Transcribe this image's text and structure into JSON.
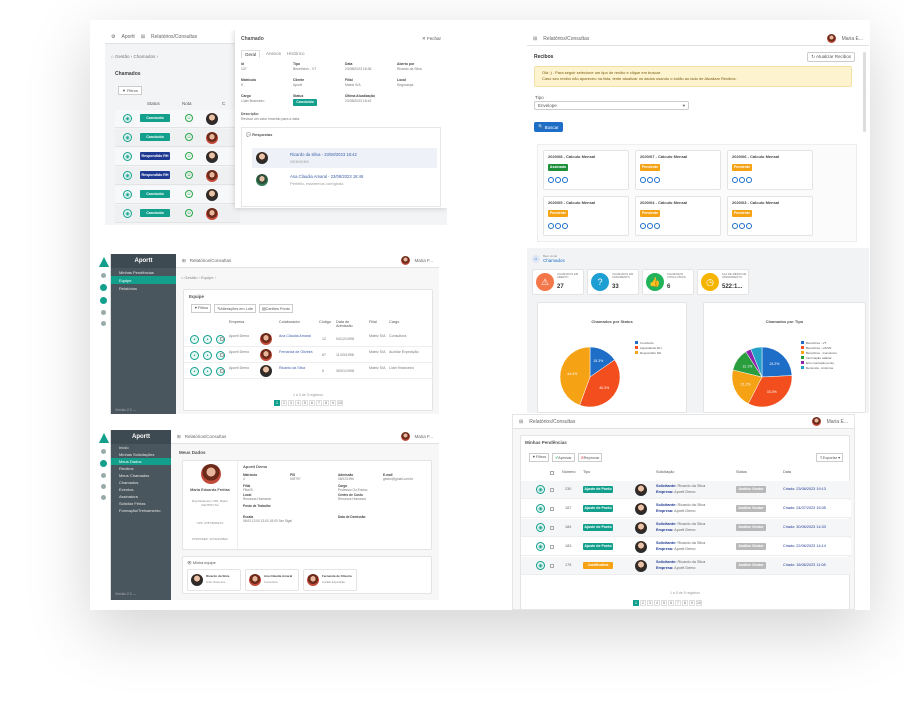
{
  "colors": {
    "accent": "#12a08c",
    "navy": "#1f3a93",
    "orange": "#f5a214",
    "blue": "#1e6ec8",
    "red": "#f24e1e",
    "sidebar": "#4a565d"
  },
  "s1": {
    "breadcrumb1": "Aportt",
    "breadcrumb2": "Relatórios/Consultas",
    "crumbs": "⌂ Gestão  ›  Chamados  ›",
    "section": "Chamados",
    "filter": "Filtros",
    "col_status": "Status",
    "col_nota": "Nota",
    "col_c": "C",
    "rows": [
      "Concluído",
      "Concluído",
      "Respondido RH",
      "Respondido RH",
      "Concluído",
      "Concluído"
    ],
    "modal": {
      "title": "Chamado",
      "close": "✕ Fechar",
      "tabs": [
        "Geral",
        "Anexos",
        "Histórico"
      ],
      "fields": [
        {
          "k": "Id",
          "v": "137"
        },
        {
          "k": "Tipo",
          "v": "Benefícios - VT"
        },
        {
          "k": "Data",
          "v": "23/08/2023 18:36"
        },
        {
          "k": "Aberto por",
          "v": "Ricardo da Silva"
        },
        {
          "k": "Matrícula",
          "v": "5"
        },
        {
          "k": "Cliente",
          "v": "Aportt"
        },
        {
          "k": "Filial",
          "v": "Matriz S/A"
        },
        {
          "k": "Local",
          "v": "Segurança"
        },
        {
          "k": "Cargo",
          "v": "Líder financeiro"
        },
        {
          "k": "Status",
          "v": "Concluído"
        },
        {
          "k": "Última Atualização",
          "v": "23/08/2023 18:42"
        }
      ],
      "desc_label": "Descrição:",
      "desc": "Revisar um valor inserido para a data.",
      "responses_title": "Respostas",
      "responses": [
        {
          "name": "Ricardo da Silva - 23/08/2023 18:42",
          "text": "OKKKKKK"
        },
        {
          "name": "Ana Cláudia Amaral - 23/08/2023 18:46",
          "text": "Perfeito, estaremos corrigindo."
        }
      ]
    }
  },
  "s2": {
    "breadcrumb": "Relatórios/Consultas",
    "user": "Maria E...",
    "section": "Recibos",
    "refresh": "Atualizar Recibos",
    "alert1": "Olá :) . Para seguir selecione um tipo de recibo e clique em buscar.",
    "alert2": "Caso seu recibo não apareceu na lista, tente atualizar os dados usando o botão ao lado de Atualizar Recibos.",
    "type_label": "Tipo",
    "type_value": "Envelope",
    "search": "Buscar",
    "receipts": [
      {
        "title": "2020/08 - Cálculo Mensal",
        "status": "Assinado"
      },
      {
        "title": "2020/07 - Cálculo Mensal",
        "status": "Pendente"
      },
      {
        "title": "2020/06 - Cálculo Mensal",
        "status": "Pendente"
      },
      {
        "title": "2020/05 - Cálculo Mensal",
        "status": "Pendente"
      },
      {
        "title": "2020/04 - Cálculo Mensal",
        "status": "Pendente"
      },
      {
        "title": "2020/03 - Cálculo Mensal",
        "status": "Pendente"
      }
    ]
  },
  "s3": {
    "app": "Aportt",
    "breadcrumb": "Relatórios/Consultas",
    "user": "Maria F...",
    "menu": [
      "Minhas Pendências",
      "Equipe",
      "Relatórios"
    ],
    "crumbs": "⌂ Gestão  ›  Equipe  ›",
    "section": "Equipe",
    "filter": "Filtros",
    "change": "Alterações em Lote",
    "cards": "Cartões Ponto",
    "headers": [
      "Empresa",
      "Colaborador",
      "Código",
      "Data de Admissão",
      "Filial",
      "Cargo"
    ],
    "rows": [
      {
        "empresa": "Aportt Demo",
        "nome": "Ana Cláudia Amaral",
        "codigo": "12",
        "data": "04/12/1998",
        "filial": "Matriz S/A",
        "cargo": "Consultora"
      },
      {
        "empresa": "Aportt Demo",
        "nome": "Fernanda de Oliveira",
        "codigo": "67",
        "data": "11/03/1998",
        "filial": "Matriz S/A",
        "cargo": "Auxiliar Expedição"
      },
      {
        "empresa": "Aportt Demo",
        "nome": "Ricardo da Silva",
        "codigo": "5",
        "data": "30/01/1998",
        "filial": "Matriz S/A",
        "cargo": "Líder financeiro"
      }
    ],
    "pager_info": "1 a 3 de 3 registros",
    "pages": [
      "1",
      "2",
      "3",
      "4",
      "5",
      "6",
      "7",
      "8",
      "9",
      "10"
    ],
    "version": "Versão 2.0 ---"
  },
  "s4": {
    "subtitle": "Bem vindo",
    "title": "Chamados",
    "kpis": [
      {
        "label": "CHAMADOS EM ABERTO",
        "value": "27",
        "color": "#f4774a"
      },
      {
        "label": "CHAMADOS EM ANDAMENTO",
        "value": "33",
        "color": "#1d9fd4"
      },
      {
        "label": "CHAMADOS CONCLUÍDOS",
        "value": "6",
        "color": "#21b35a"
      },
      {
        "label": "SLA DE MÉDIO DE ATENDIMENTO",
        "value": "522:1...",
        "color": "#f5b400"
      }
    ]
  },
  "chart_data": [
    {
      "type": "pie",
      "title": "Chamados por Status",
      "categories": [
        "Concluído",
        "Aguardando RH",
        "Respondido RH"
      ],
      "values": [
        15.3,
        40.3,
        44.4
      ],
      "colors": [
        "#1e6ec8",
        "#f24e1e",
        "#f5a214"
      ]
    },
    {
      "type": "pie",
      "title": "Chamados por Tipo",
      "categories": [
        "Benefícios - VT",
        "Benefícios - VA/VR",
        "Benefícios - Convênios",
        "Informação salarial",
        "Erro marcação ponto",
        "Denúncia - Anônima"
      ],
      "values": [
        24.2,
        33.3,
        21.2,
        12.1,
        3.0,
        6.1
      ],
      "colors": [
        "#1e6ec8",
        "#f24e1e",
        "#f5a214",
        "#2a9d3c",
        "#8e24aa",
        "#24a1c7"
      ]
    }
  ],
  "s5": {
    "app": "Aportt",
    "breadcrumb": "Relatórios/Consultas",
    "user": "Maria F...",
    "menu": [
      "Início",
      "Minhas Solicitações",
      "Meus Dados",
      "Recibos",
      "Meus Chamados",
      "Chamados",
      "Eventos",
      "Assinatura",
      "Solicitar Férias",
      "Formação/Treinamento"
    ],
    "section": "Meus Dados",
    "name": "Maria Eduarda Freitas",
    "company": "Aportt Demo",
    "address": "Rua Diatenson, 581, Bairro CENTRO SC",
    "cpf": "CPF: 078740691XX",
    "pis": "PIS/PASEP: 12742210822",
    "fields": [
      {
        "k": "Matrícula",
        "v": "4"
      },
      {
        "k": "PIS",
        "v": "049797"
      },
      {
        "k": "Admissão",
        "v": "06/02/1996"
      },
      {
        "k": "E-mail",
        "v": "gestor@gmail.com.br"
      },
      {
        "k": "Filial",
        "v": "Filial B"
      },
      {
        "k": "Cargo",
        "v": "Professor Ou Ensino"
      },
      {
        "k": "Local",
        "v": "Recursos Humanos"
      },
      {
        "k": "Centro de Custo",
        "v": "Recursos Humanos"
      },
      {
        "k": "Posto de Trabalho",
        "v": ""
      },
      {
        "k": "Escala",
        "v": "08:00 12:00 13:00 18:00 Sex Sigal"
      },
      {
        "k": "Data de Demissão",
        "v": ""
      }
    ],
    "team_title": "Minha equipe",
    "team": [
      {
        "name": "Ricardo da Silva",
        "role": "Líder financeiro"
      },
      {
        "name": "Ana Cláudia Amaral",
        "role": "Consultora"
      },
      {
        "name": "Fernanda de Oliveira",
        "role": "Auxiliar Expedição"
      }
    ],
    "version": "Versão 2.0 ---"
  },
  "s6": {
    "breadcrumb": "Relatórios/Consultas",
    "user": "Maria E...",
    "section": "Minhas Pendências",
    "filter": "Filtros",
    "approve": "Aprovar",
    "reject": "Reprovar",
    "export": "Exportar",
    "headers": [
      "Número",
      "Tipo",
      "Solicitação",
      "Status",
      "Data"
    ],
    "rows": [
      {
        "num": "230",
        "tipo": "Ajuste de Ponto",
        "sol": "Ricardo da Silva",
        "emp": "Aportt Demo",
        "status": "Análise Gestor",
        "data": "Criado: 23/08/2023 19:13"
      },
      {
        "num": "187",
        "tipo": "Ajuste de Ponto",
        "sol": "Ricardo da Silva",
        "emp": "Aportt Demo",
        "status": "Análise Gestor",
        "data": "Criado: 24/07/2023 15:35"
      },
      {
        "num": "184",
        "tipo": "Ajuste de Ponto",
        "sol": "Ricardo da Silva",
        "emp": "Aportt Demo",
        "status": "Análise Gestor",
        "data": "Criado: 30/06/2023 14:33"
      },
      {
        "num": "183",
        "tipo": "Ajuste de Ponto",
        "sol": "Ricardo da Silva",
        "emp": "Aportt Demo",
        "status": "Análise Gestor",
        "data": "Criado: 22/06/2023 14:14"
      },
      {
        "num": "175",
        "tipo": "Justificativa",
        "sol": "Ricardo da Silva",
        "emp": "Aportt Demo",
        "status": "Análise Gestor",
        "data": "Criado: 16/06/2023 11:08"
      }
    ],
    "sol_label": "Solicitante:",
    "emp_label": "Empresa:",
    "pager_info": "1 a 5 de 5 registros",
    "pages": [
      "1",
      "2",
      "3",
      "4",
      "5",
      "6",
      "7",
      "8",
      "9",
      "10"
    ]
  }
}
